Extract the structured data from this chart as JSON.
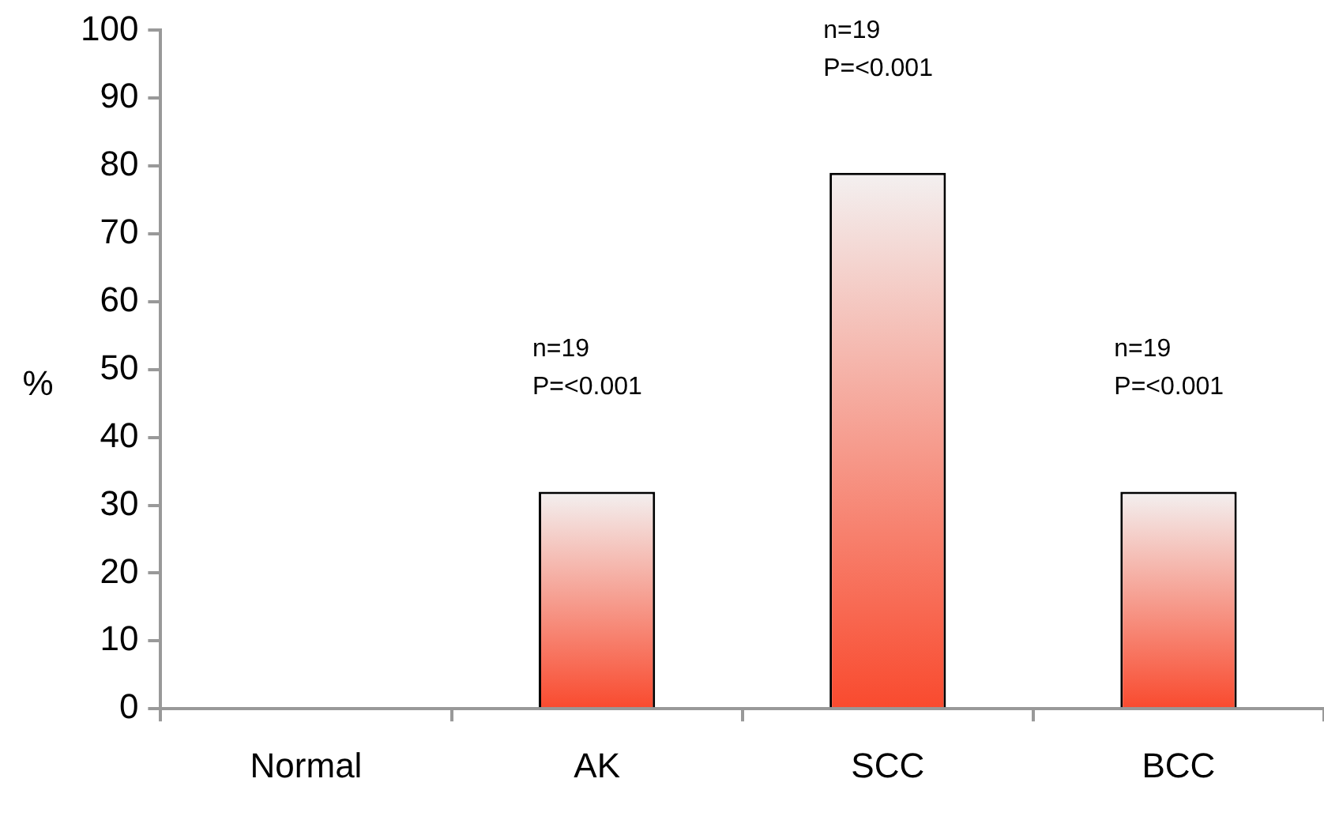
{
  "chart_data": {
    "type": "bar",
    "ylabel": "%",
    "categories": [
      "Normal",
      "AK",
      "SCC",
      "BCC"
    ],
    "values": [
      0,
      32,
      79,
      32
    ],
    "color": "#f94a2e",
    "ylim": [
      0,
      100
    ],
    "yticks": [
      0,
      10,
      20,
      30,
      40,
      50,
      60,
      70,
      80,
      90,
      100
    ],
    "grid": false,
    "legend": false,
    "annotations": [
      "n=19\nP=<0.001",
      "n=19\nP=<0.001",
      "n=19\nP=<0.001"
    ]
  }
}
